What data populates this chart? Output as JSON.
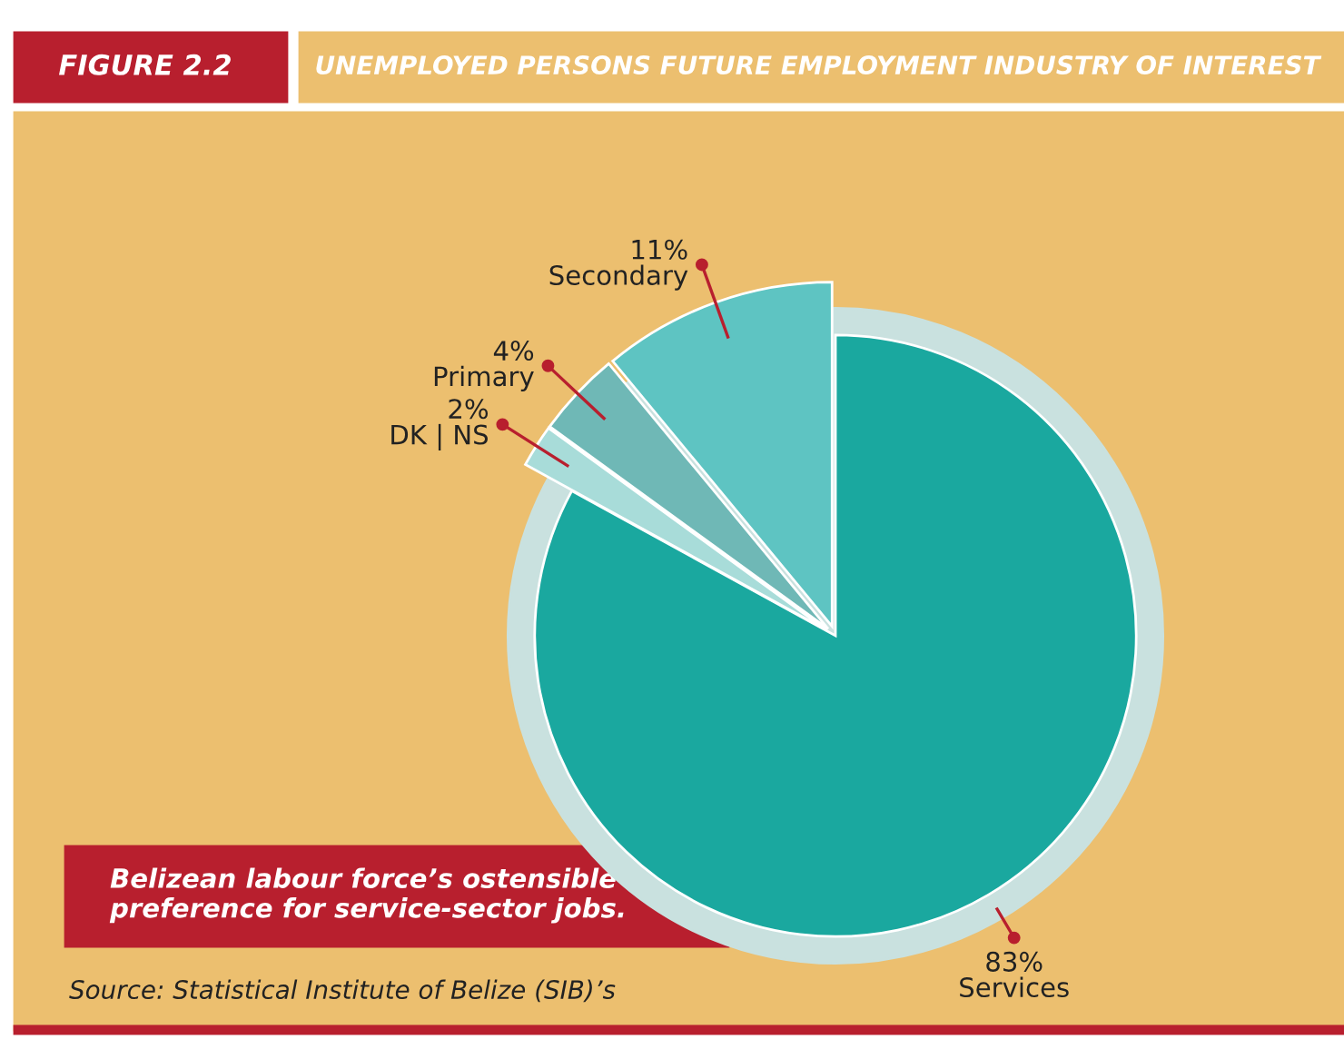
{
  "chart_data": {
    "type": "pie",
    "title": "UNEMPLOYED PERSONS FUTURE EMPLOYMENT INDUSTRY OF INTEREST",
    "subtitle": "FIGURE 2.2",
    "categories": [
      "Services",
      "DK | NS",
      "Primary",
      "Secondary"
    ],
    "values": [
      83,
      2,
      4,
      11
    ],
    "colors": [
      "#1aa89f",
      "#a8dcd9",
      "#6fb8b6",
      "#5ec4c2"
    ],
    "value_labels": [
      "83%",
      "2%",
      "4%",
      "11%"
    ],
    "annotations": [
      "Belizean labour force’s ostensible preference for service-sector jobs.",
      "Source: Statistical Institute of Belize (SIB)’s"
    ]
  }
}
